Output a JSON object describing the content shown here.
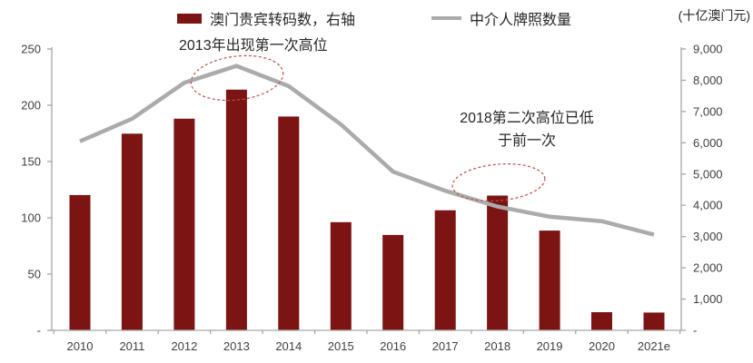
{
  "legend": {
    "bar_label": "澳门贵宾转码数，右轴",
    "line_label": "中介人牌照数量"
  },
  "chart_data": {
    "type": "combo",
    "categories": [
      "2010",
      "2011",
      "2012",
      "2013",
      "2014",
      "2015",
      "2016",
      "2017",
      "2018",
      "2019",
      "2020",
      "2021e"
    ],
    "series": [
      {
        "name": "澳门贵宾转码数，右轴",
        "type": "bar",
        "axis": "right",
        "values": [
          4330,
          6290,
          6770,
          7700,
          6840,
          3460,
          3050,
          3840,
          4310,
          3190,
          580,
          570
        ]
      },
      {
        "name": "中介人牌照数量",
        "type": "line",
        "axis": "left",
        "values": [
          168,
          188,
          220,
          235,
          217,
          183,
          141,
          124,
          110,
          101,
          97,
          85
        ]
      }
    ],
    "left_axis": {
      "min": 0,
      "max": 250,
      "step": 50,
      "labels_bottom_to_top": [
        "-",
        "50",
        "100",
        "150",
        "200",
        "250"
      ]
    },
    "right_axis": {
      "min": 0,
      "max": 9000,
      "step": 1000,
      "unit": "(十亿澳门元)",
      "labels_bottom_to_top": [
        "-",
        "1,000",
        "2,000",
        "3,000",
        "4,000",
        "5,000",
        "6,000",
        "7,000",
        "8,000",
        "9,000"
      ]
    },
    "annotations": [
      {
        "text": "2013年出现第一次高位"
      },
      {
        "lines": [
          "2018第二次高位已低",
          "于前一次"
        ]
      }
    ],
    "colors": {
      "bar": "#7B1412",
      "line": "#ABABAB",
      "axis": "#A6A6A6",
      "tick_text": "#404040",
      "annotation_text": "#262626",
      "ellipse": "#C0504D"
    },
    "grid": "off",
    "legend_position": "top"
  }
}
